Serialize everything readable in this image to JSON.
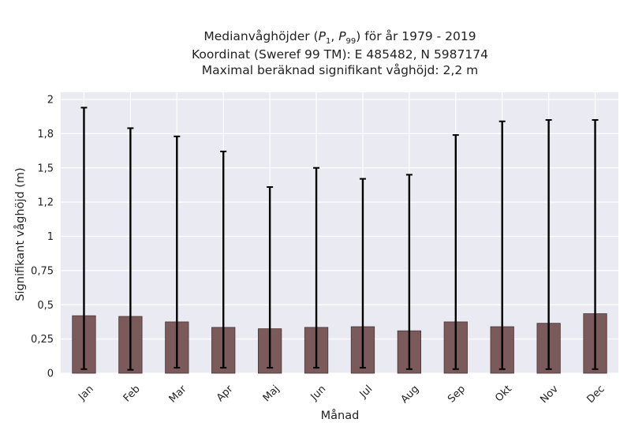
{
  "chart_data": {
    "type": "bar",
    "title_lines": [
      "Medianvåghöjder (P1, P99) för år 1979 - 2019",
      "Koordinat (Sweref 99 TM): E 485482, N 5987174",
      "Maximal beräknad signifikant våghöjd: 2,2 m"
    ],
    "xlabel": "Månad",
    "ylabel": "Signifikant våghöjd (m)",
    "categories": [
      "Jan",
      "Feb",
      "Mar",
      "Apr",
      "Maj",
      "Jun",
      "Jul",
      "Aug",
      "Sep",
      "Okt",
      "Nov",
      "Dec"
    ],
    "values": [
      0.42,
      0.415,
      0.375,
      0.335,
      0.325,
      0.335,
      0.34,
      0.31,
      0.375,
      0.34,
      0.365,
      0.435
    ],
    "p1": [
      0.03,
      0.025,
      0.04,
      0.04,
      0.04,
      0.04,
      0.04,
      0.03,
      0.03,
      0.03,
      0.03,
      0.03
    ],
    "p99": [
      1.94,
      1.79,
      1.73,
      1.62,
      1.36,
      1.5,
      1.42,
      1.45,
      1.74,
      1.84,
      1.85,
      1.85
    ],
    "ylim": [
      0,
      2
    ],
    "yticks": [
      0,
      0.25,
      0.5,
      0.75,
      1,
      1.25,
      1.5,
      1.75,
      2
    ],
    "ytick_labels": [
      "0",
      "0,25",
      "0,5",
      "0,75",
      "1",
      "1,2",
      "1,5",
      "1,8",
      "2"
    ],
    "grid": true,
    "colors": {
      "bar": "#7a5a5a",
      "bar_edge": "#4a3535",
      "error": "#000000",
      "background": "#eaeaf2",
      "grid": "#ffffff"
    }
  }
}
